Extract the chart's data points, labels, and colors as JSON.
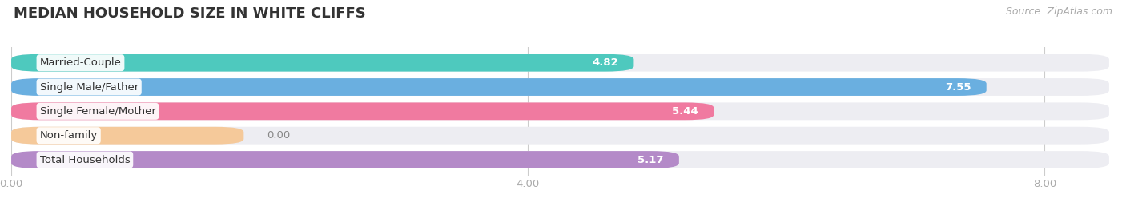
{
  "title": "MEDIAN HOUSEHOLD SIZE IN WHITE CLIFFS",
  "source": "Source: ZipAtlas.com",
  "categories": [
    "Married-Couple",
    "Single Male/Father",
    "Single Female/Mother",
    "Non-family",
    "Total Households"
  ],
  "values": [
    4.82,
    7.55,
    5.44,
    0.0,
    5.17
  ],
  "bar_colors": [
    "#4ec9be",
    "#6aafe0",
    "#f07aa0",
    "#f5c99a",
    "#b48ac8"
  ],
  "bar_bg_color": "#ededf2",
  "value_label_color": "#ffffff",
  "nonfamily_label_color": "#888888",
  "xlim_max": 8.5,
  "xticks": [
    0.0,
    4.0,
    8.0
  ],
  "title_fontsize": 13,
  "label_fontsize": 9.5,
  "value_fontsize": 9.5,
  "source_fontsize": 9,
  "background_color": "#ffffff",
  "bar_height": 0.72,
  "nonfamily_bar_width": 1.8
}
